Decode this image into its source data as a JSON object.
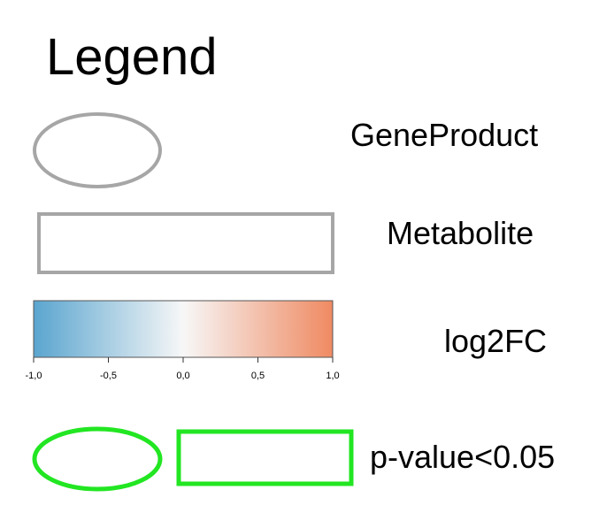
{
  "legend": {
    "title": "Legend",
    "items": [
      {
        "label": "GeneProduct",
        "shape": "ellipse",
        "stroke": "#a6a6a6"
      },
      {
        "label": "Metabolite",
        "shape": "rectangle",
        "stroke": "#a6a6a6"
      },
      {
        "label": "log2FC",
        "shape": "colorbar"
      },
      {
        "label": "p-value<0.05",
        "shape": "ellipse-and-rectangle",
        "stroke": "#22e622"
      }
    ],
    "colorbar": {
      "min": -1.0,
      "max": 1.0,
      "ticks": [
        "-1,0",
        "-0,5",
        "0,0",
        "0,5",
        "1,0"
      ],
      "tick_values": [
        -1.0,
        -0.5,
        0.0,
        0.5,
        1.0
      ],
      "colors": {
        "low": "#5aa5cf",
        "mid": "#f7f7f7",
        "high": "#ef8a62"
      }
    }
  }
}
